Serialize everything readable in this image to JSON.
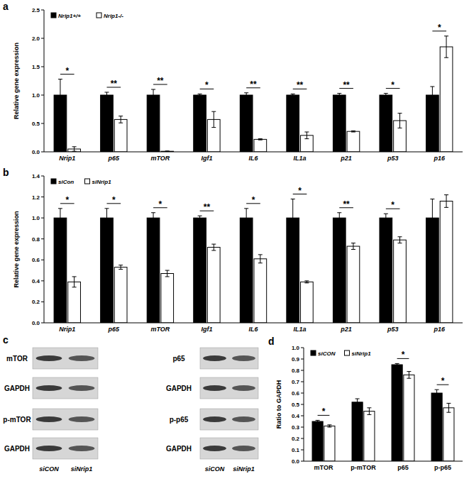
{
  "panel_labels": [
    "a",
    "b",
    "c",
    "d"
  ],
  "chart_data": [
    {
      "type": "bar",
      "ylabel": "Relative gene expression",
      "categories": [
        "Nrip1",
        "p65",
        "mTOR",
        "Igf1",
        "IL6",
        "IL1a",
        "p21",
        "p53",
        "p16"
      ],
      "series": [
        {
          "name": "Nrip1+/+",
          "color": "#000000",
          "values": [
            1.0,
            1.0,
            1.0,
            1.0,
            1.0,
            1.0,
            1.0,
            1.0,
            1.0
          ],
          "errors": [
            0.28,
            0.05,
            0.1,
            0.02,
            0.04,
            0.02,
            0.03,
            0.03,
            0.15
          ]
        },
        {
          "name": "Nrip1-/-",
          "color": "#ffffff",
          "values": [
            0.05,
            0.57,
            0.01,
            0.57,
            0.22,
            0.29,
            0.36,
            0.55,
            1.85
          ],
          "errors": [
            0.04,
            0.06,
            0.005,
            0.14,
            0.01,
            0.06,
            0.01,
            0.13,
            0.19
          ]
        }
      ],
      "annotations": [
        "*",
        "**",
        "**",
        "*",
        "**",
        "**",
        "**",
        "*",
        "*"
      ],
      "ylim": [
        0,
        2.5
      ],
      "yticks": [
        {
          "value": 0,
          "label": "0.0"
        },
        0.5,
        {
          "value": 1,
          "label": "1.0"
        },
        1.5,
        {
          "value": 2,
          "label": "2.0"
        },
        2.5
      ],
      "grid": false,
      "legend": "upper left"
    },
    {
      "type": "bar",
      "ylabel": "Relative gene expression",
      "categories": [
        "Nrip1",
        "p65",
        "mTOR",
        "Igf1",
        "IL6",
        "IL1a",
        "p21",
        "p53",
        "p16"
      ],
      "series": [
        {
          "name": "siCon",
          "color": "#000000",
          "values": [
            1.0,
            1.0,
            1.0,
            1.0,
            1.0,
            1.0,
            1.0,
            1.0,
            1.0
          ],
          "errors": [
            0.09,
            0.09,
            0.05,
            0.02,
            0.09,
            0.18,
            0.05,
            0.04,
            0.18
          ]
        },
        {
          "name": "siNrip1",
          "color": "#ffffff",
          "values": [
            0.39,
            0.53,
            0.47,
            0.72,
            0.61,
            0.39,
            0.73,
            0.79,
            1.16
          ],
          "errors": [
            0.05,
            0.02,
            0.03,
            0.03,
            0.04,
            0.01,
            0.03,
            0.03,
            0.06
          ]
        }
      ],
      "annotations": [
        "*",
        "*",
        "*",
        "**",
        "*",
        "*",
        "**",
        "*",
        null
      ],
      "ylim": [
        0,
        1.4
      ],
      "yticks": [
        {
          "value": 0,
          "label": "0.0"
        },
        0.2,
        0.4,
        0.6,
        0.8,
        {
          "value": 1,
          "label": "1.0"
        },
        1.2,
        1.4
      ],
      "grid": false,
      "legend": "upper left"
    },
    {
      "type": "bar",
      "ylabel": "Ratio to GAPDH",
      "categories": [
        "mTOR",
        "p-mTOR",
        "p65",
        "p-p65"
      ],
      "series": [
        {
          "name": "siCON",
          "color": "#000000",
          "values": [
            0.35,
            0.52,
            0.85,
            0.6
          ],
          "errors": [
            0.01,
            0.03,
            0.01,
            0.03
          ]
        },
        {
          "name": "siNrip1",
          "color": "#ffffff",
          "values": [
            0.31,
            0.44,
            0.76,
            0.47
          ],
          "errors": [
            0.01,
            0.03,
            0.03,
            0.04
          ]
        }
      ],
      "annotations": [
        "*",
        null,
        "*",
        "*"
      ],
      "ylim": [
        0,
        1.0
      ],
      "yticks": [
        {
          "value": 0,
          "label": "0.0"
        },
        0.1,
        0.2,
        0.3,
        0.4,
        0.5,
        0.6,
        0.7,
        0.8,
        0.9,
        {
          "value": 1,
          "label": "1.0"
        }
      ],
      "grid": false,
      "legend": "upper left"
    }
  ],
  "blot": {
    "panels": [
      {
        "rows": [
          "mTOR",
          "GAPDH",
          "p-mTOR",
          "GAPDH"
        ]
      },
      {
        "rows": [
          "p65",
          "GAPDH",
          "p-p65",
          "GAPDH"
        ]
      }
    ],
    "lanes": [
      "siCON",
      "siNrip1"
    ]
  }
}
